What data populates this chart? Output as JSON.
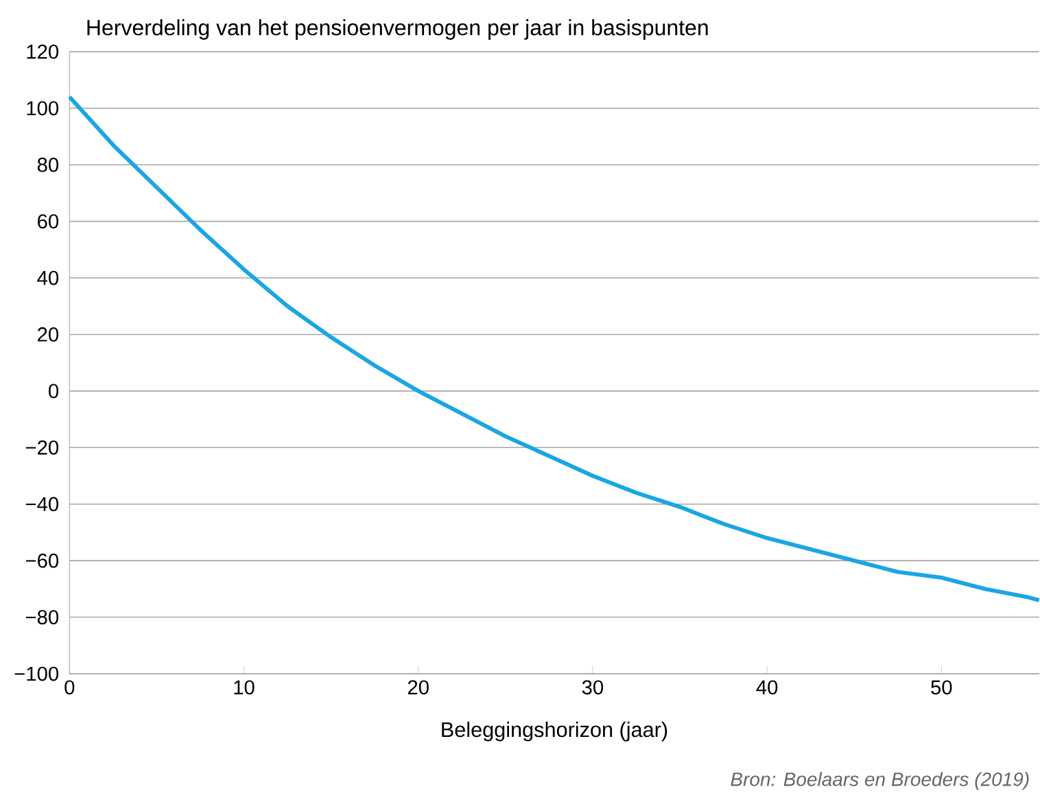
{
  "chart_data": {
    "type": "line",
    "title": "Herverdeling van het pensioenvermogen per jaar in basispunten",
    "xlabel": "Beleggingshorizon (jaar)",
    "annotations": [
      "Bron: Boelaars en Broeders (2019)"
    ],
    "x": [
      0,
      2.5,
      5,
      7.5,
      10,
      12.5,
      15,
      17.5,
      20,
      22.5,
      25,
      27.5,
      30,
      32.5,
      35,
      37.5,
      40,
      42.5,
      45,
      47.5,
      50,
      52.5,
      55,
      55.6
    ],
    "series": [
      {
        "color": "#1ba6e3",
        "values": [
          104,
          87,
          72,
          57,
          43,
          30,
          19,
          9,
          0,
          -8,
          -16,
          -23,
          -30,
          -36,
          -41,
          -47,
          -52,
          -56,
          -60,
          -64,
          -66,
          -70,
          -73,
          -74
        ]
      }
    ],
    "xlim": [
      0,
      55.6
    ],
    "ylim": [
      -100,
      120
    ],
    "xticks": [
      0,
      10,
      20,
      30,
      40,
      50
    ],
    "yticks": [
      {
        "value": -100,
        "label": "−100"
      },
      {
        "value": -80,
        "label": "−80"
      },
      {
        "value": -60,
        "label": "−60"
      },
      {
        "value": -40,
        "label": "−40"
      },
      {
        "value": -20,
        "label": "−20"
      },
      0,
      20,
      40,
      60,
      80,
      100,
      120
    ],
    "grid": "y",
    "marker": "none",
    "line_style": "solid"
  }
}
